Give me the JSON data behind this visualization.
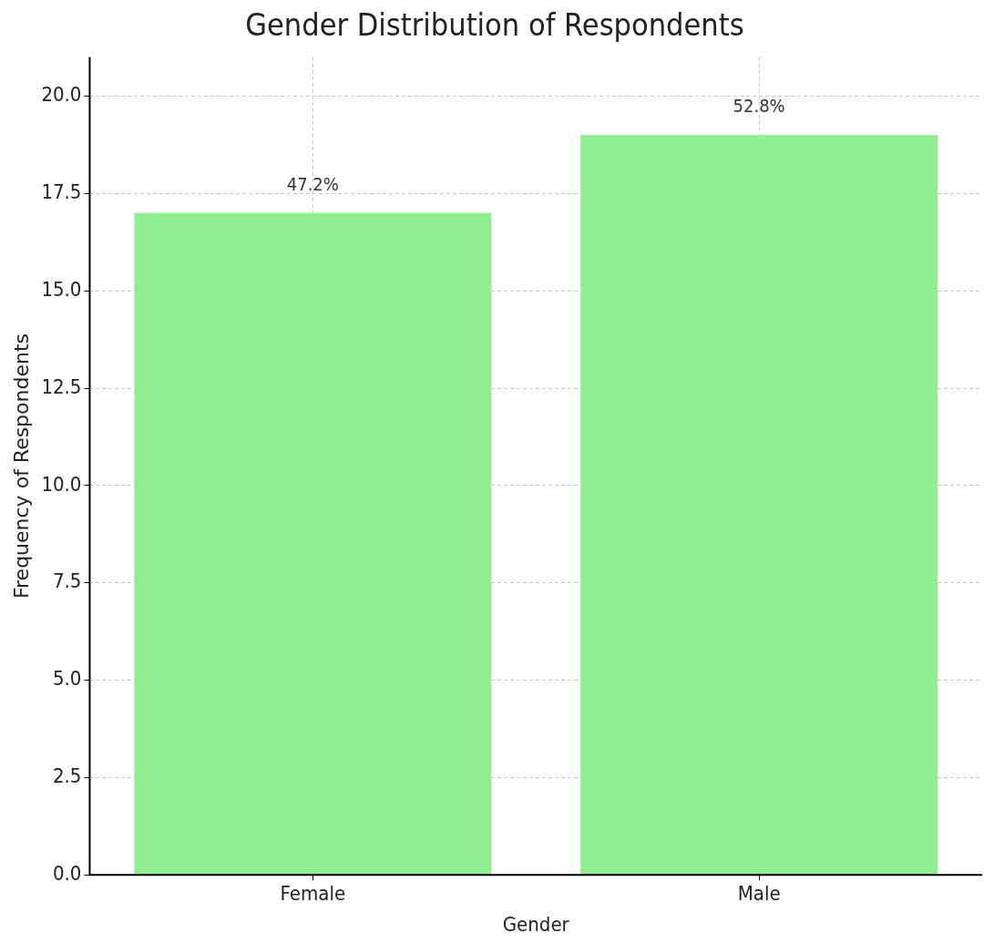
{
  "chart_data": {
    "type": "bar",
    "title": "Gender Distribution of Respondents",
    "xlabel": "Gender",
    "ylabel": "Frequency of Respondents",
    "categories": [
      "Female",
      "Male"
    ],
    "values": [
      17,
      19
    ],
    "color": "#90ee90",
    "annotations": [
      {
        "text": "47.2%",
        "x": "Female",
        "y": 17
      },
      {
        "text": "52.8%",
        "x": "Male",
        "y": 19
      }
    ],
    "ylim": [
      0,
      21
    ],
    "yticks": [
      {
        "value": 0,
        "label": "0.0"
      },
      {
        "value": 2.5,
        "label": "2.5"
      },
      {
        "value": 5,
        "label": "5.0"
      },
      {
        "value": 7.5,
        "label": "7.5"
      },
      {
        "value": 10,
        "label": "10.0"
      },
      {
        "value": 12.5,
        "label": "12.5"
      },
      {
        "value": 15,
        "label": "15.0"
      },
      {
        "value": 17.5,
        "label": "17.5"
      },
      {
        "value": 20,
        "label": "20.0"
      }
    ],
    "grid": true
  }
}
